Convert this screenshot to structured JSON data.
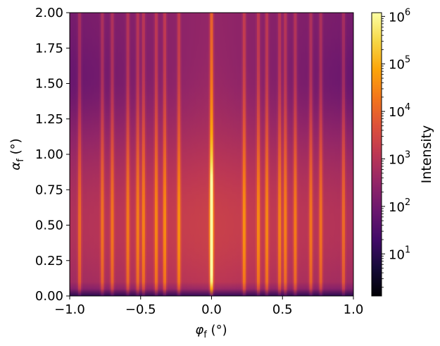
{
  "chart_data": {
    "type": "heatmap",
    "title": "",
    "xlabel": "φ_f (°)",
    "ylabel": "α_f (°)",
    "xlabel_parts": {
      "base": "φ",
      "sub": "f",
      "unit": "(°)"
    },
    "ylabel_parts": {
      "base": "α",
      "sub": "f",
      "unit": "(°)"
    },
    "xlim": [
      -1.0,
      1.0
    ],
    "ylim": [
      0.0,
      2.0
    ],
    "xticks": [
      -1.0,
      -0.5,
      0.0,
      0.5,
      1.0
    ],
    "xtick_labels": [
      "−1.0",
      "−0.5",
      "0.0",
      "0.5",
      "1.0"
    ],
    "yticks": [
      0.0,
      0.25,
      0.5,
      0.75,
      1.0,
      1.25,
      1.5,
      1.75,
      2.0
    ],
    "ytick_labels": [
      "0.00",
      "0.25",
      "0.50",
      "0.75",
      "1.00",
      "1.25",
      "1.50",
      "1.75",
      "2.00"
    ],
    "colormap": "inferno",
    "colorbar": {
      "label": "Intensity",
      "scale": "log",
      "range": [
        1.3,
        1200000
      ],
      "ticks": [
        10,
        100,
        1000,
        10000,
        100000,
        1000000
      ],
      "tick_labels": [
        {
          "base": "10",
          "exp": "1"
        },
        {
          "base": "10",
          "exp": "2"
        },
        {
          "base": "10",
          "exp": "3"
        },
        {
          "base": "10",
          "exp": "4"
        },
        {
          "base": "10",
          "exp": "5"
        },
        {
          "base": "10",
          "exp": "6"
        }
      ]
    },
    "grid": false,
    "peak": {
      "x": 0.0,
      "y": 0.5,
      "intensity": 1000000
    },
    "streak_positions_x": [
      -0.93,
      -0.77,
      -0.7,
      -0.59,
      -0.52,
      -0.48,
      -0.39,
      -0.33,
      -0.23,
      0.0,
      0.23,
      0.33,
      0.39,
      0.48,
      0.52,
      0.59,
      0.7,
      0.77,
      0.93
    ]
  }
}
